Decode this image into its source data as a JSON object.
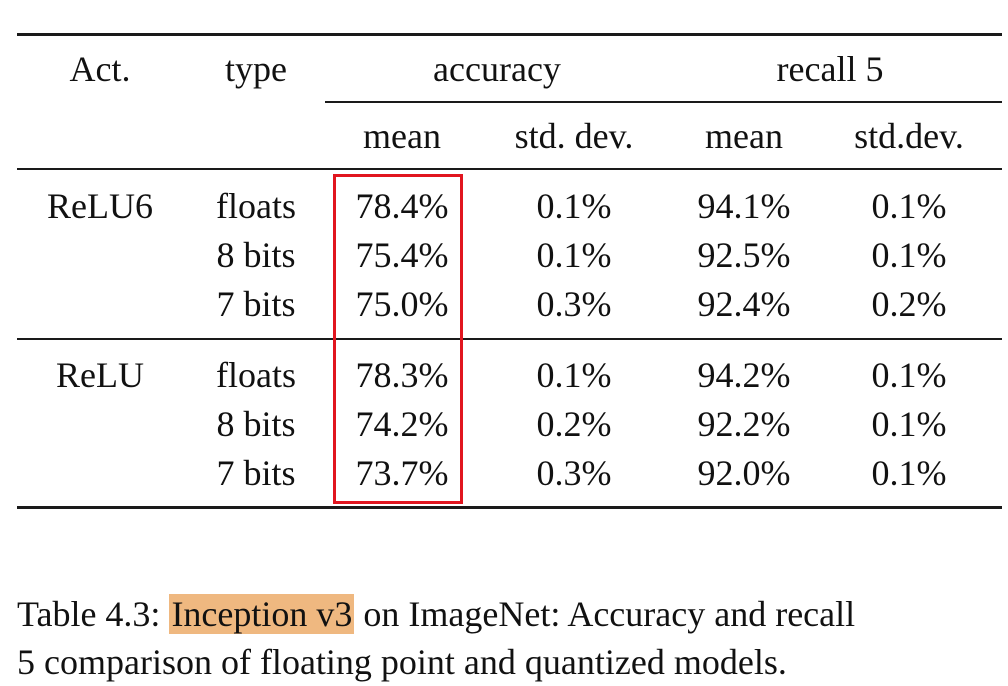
{
  "table": {
    "header": {
      "act": "Act.",
      "type": "type",
      "accuracy": "accuracy",
      "recall": "recall 5",
      "sub": [
        "mean",
        "std. dev.",
        "mean",
        "std.dev."
      ]
    },
    "groups": [
      {
        "act": "ReLU6",
        "rows": [
          {
            "type": "floats",
            "acc_mean": "78.4%",
            "acc_std": "0.1%",
            "rec_mean": "94.1%",
            "rec_std": "0.1%"
          },
          {
            "type": "8 bits",
            "acc_mean": "75.4%",
            "acc_std": "0.1%",
            "rec_mean": "92.5%",
            "rec_std": "0.1%"
          },
          {
            "type": "7 bits",
            "acc_mean": "75.0%",
            "acc_std": "0.3%",
            "rec_mean": "92.4%",
            "rec_std": "0.2%"
          }
        ]
      },
      {
        "act": "ReLU",
        "rows": [
          {
            "type": "floats",
            "acc_mean": "78.3%",
            "acc_std": "0.1%",
            "rec_mean": "94.2%",
            "rec_std": "0.1%"
          },
          {
            "type": "8 bits",
            "acc_mean": "74.2%",
            "acc_std": "0.2%",
            "rec_mean": "92.2%",
            "rec_std": "0.1%"
          },
          {
            "type": "7 bits",
            "acc_mean": "73.7%",
            "acc_std": "0.3%",
            "rec_mean": "92.0%",
            "rec_std": "0.1%"
          }
        ]
      }
    ]
  },
  "caption": {
    "prefix": "Table 4.3: ",
    "highlight": "Inception v3",
    "line1_rest": " on ImageNet: Accuracy and recall",
    "line2": "5 comparison of floating point and quantized models."
  },
  "colors": {
    "annotation_box": "#e1151f",
    "text_highlight": "#efb880"
  }
}
